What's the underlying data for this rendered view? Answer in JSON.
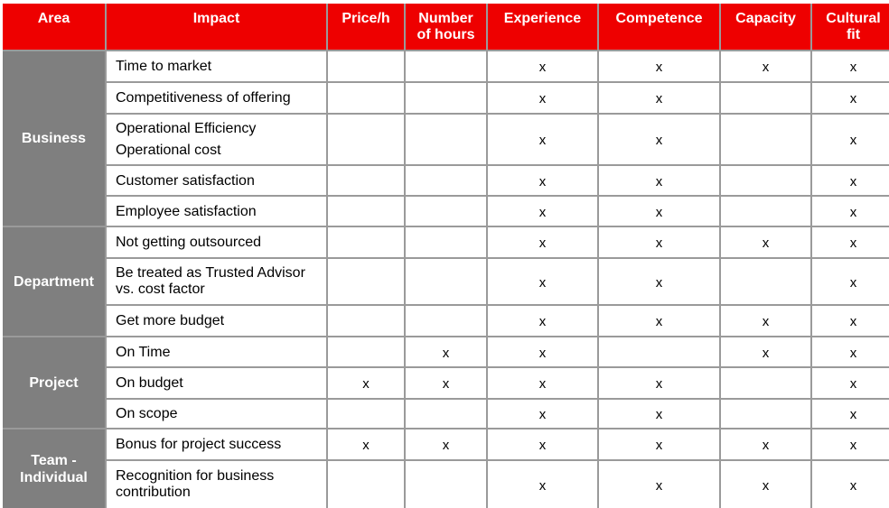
{
  "headers": [
    "Area",
    "Impact",
    "Price/h",
    "Number of hours",
    "Experience",
    "Competence",
    "Capacity",
    "Cultural fit"
  ],
  "areas": [
    {
      "name": "Business",
      "rows": [
        {
          "impact": [
            "Time to market"
          ],
          "marks": [
            "",
            "",
            "x",
            "x",
            "x",
            "x"
          ]
        },
        {
          "impact": [
            "Competitiveness of offering"
          ],
          "marks": [
            "",
            "",
            "x",
            "x",
            "",
            "x"
          ]
        },
        {
          "impact": [
            "Operational Efficiency",
            "Operational cost"
          ],
          "marks": [
            "",
            "",
            "x",
            "x",
            "",
            "x"
          ]
        },
        {
          "impact": [
            "Customer satisfaction"
          ],
          "marks": [
            "",
            "",
            "x",
            "x",
            "",
            "x"
          ]
        },
        {
          "impact": [
            "Employee satisfaction"
          ],
          "marks": [
            "",
            "",
            "x",
            "x",
            "",
            "x"
          ]
        }
      ]
    },
    {
      "name": "Department",
      "rows": [
        {
          "impact": [
            "Not getting outsourced"
          ],
          "marks": [
            "",
            "",
            "x",
            "x",
            "x",
            "x"
          ]
        },
        {
          "impact": [
            "Be treated as Trusted Advisor vs. cost factor"
          ],
          "marks": [
            "",
            "",
            "x",
            "x",
            "",
            "x"
          ]
        },
        {
          "impact": [
            "Get more budget"
          ],
          "marks": [
            "",
            "",
            "x",
            "x",
            "x",
            "x"
          ]
        }
      ]
    },
    {
      "name": "Project",
      "rows": [
        {
          "impact": [
            "On Time"
          ],
          "marks": [
            "",
            "x",
            "x",
            "",
            "x",
            "x"
          ]
        },
        {
          "impact": [
            "On budget"
          ],
          "marks": [
            "x",
            "x",
            "x",
            "x",
            "",
            "x"
          ]
        },
        {
          "impact": [
            "On scope"
          ],
          "marks": [
            "",
            "",
            "x",
            "x",
            "",
            "x"
          ]
        }
      ]
    },
    {
      "name": "Team - Individual",
      "rows": [
        {
          "impact": [
            "Bonus for project success"
          ],
          "marks": [
            "x",
            "x",
            "x",
            "x",
            "x",
            "x"
          ]
        },
        {
          "impact": [
            "Recognition for business contribution"
          ],
          "marks": [
            "",
            "",
            "x",
            "x",
            "x",
            "x"
          ]
        }
      ]
    }
  ],
  "colors": {
    "header": "#ee0000",
    "area": "#7f7f7f",
    "border": "#9a9a9a"
  }
}
